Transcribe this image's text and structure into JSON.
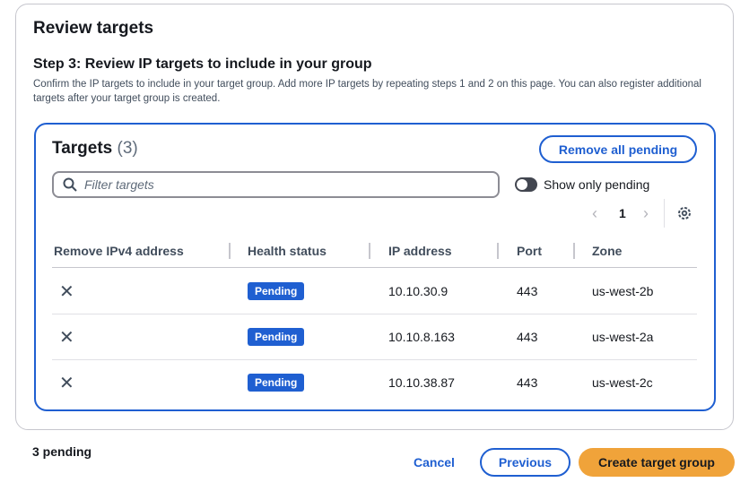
{
  "section_title": "Review targets",
  "step": {
    "heading": "Step 3: Review IP targets to include in your group",
    "description": "Confirm the IP targets to include in your target group. Add more IP targets by repeating steps 1 and 2 on this page. You can also register additional targets after your target group is created."
  },
  "targets": {
    "title": "Targets",
    "count": "(3)",
    "remove_all_label": "Remove all pending",
    "filter_placeholder": "Filter targets",
    "toggle_label": "Show only pending",
    "toggle_on": false,
    "page": "1",
    "columns": [
      "Remove IPv4 address",
      "Health status",
      "IP address",
      "Port",
      "Zone"
    ],
    "rows": [
      {
        "status": "Pending",
        "ip": "10.10.30.9",
        "port": "443",
        "zone": "us-west-2b"
      },
      {
        "status": "Pending",
        "ip": "10.10.8.163",
        "port": "443",
        "zone": "us-west-2a"
      },
      {
        "status": "Pending",
        "ip": "10.10.38.87",
        "port": "443",
        "zone": "us-west-2c"
      }
    ]
  },
  "footer": {
    "pending": "3 pending",
    "cancel": "Cancel",
    "previous": "Previous",
    "create": "Create target group"
  },
  "colors": {
    "primary": "#1f5fd1",
    "create": "#f0a33a"
  }
}
